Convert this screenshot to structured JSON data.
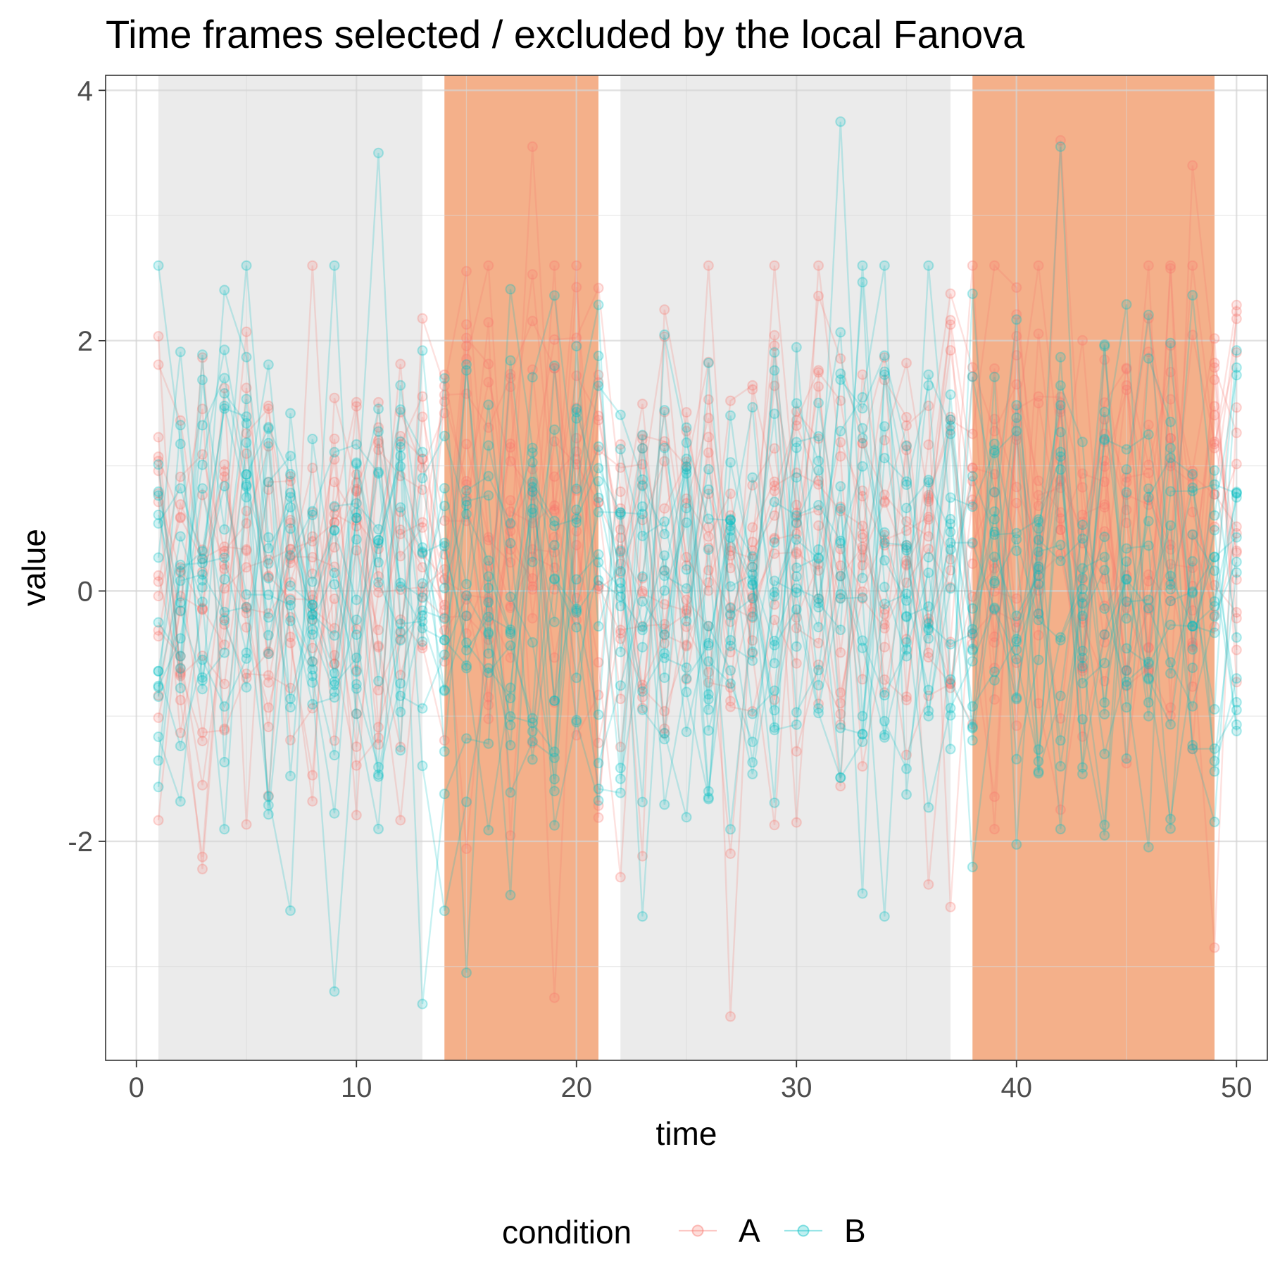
{
  "chart_data": {
    "type": "line",
    "title": "Time frames selected / excluded by the local Fanova",
    "xlabel": "time",
    "ylabel": "value",
    "xlim": [
      -1.4,
      51.4
    ],
    "ylim": [
      -3.75,
      4.12
    ],
    "x_ticks": [
      0,
      10,
      20,
      30,
      40,
      50
    ],
    "x_tick_labels": [
      "0",
      "10",
      "20",
      "30",
      "40",
      "50"
    ],
    "y_ticks": [
      -2,
      0,
      2,
      4
    ],
    "y_tick_labels": [
      "-2",
      "0",
      "2",
      "4"
    ],
    "grid": true,
    "legend": {
      "title": "condition",
      "position": "bottom",
      "entries": [
        {
          "label": "A",
          "color": "#F8766D"
        },
        {
          "label": "B",
          "color": "#00BFC4"
        }
      ]
    },
    "time_points": {
      "start": 1,
      "end": 50
    },
    "curves_per_condition": 16,
    "series_summary": [
      {
        "name": "A",
        "color": "#F8766D",
        "opacity": 0.22,
        "mean": 0.3,
        "sd": 1.0
      },
      {
        "name": "B",
        "color": "#00BFC4",
        "opacity": 0.22,
        "mean": 0.15,
        "sd": 1.0
      }
    ],
    "regions": [
      {
        "label": "excluded",
        "x_start": 1,
        "x_end": 13,
        "color": "#EBEBEB"
      },
      {
        "label": "selected",
        "x_start": 14,
        "x_end": 21,
        "color": "#F4B08A"
      },
      {
        "label": "excluded",
        "x_start": 22,
        "x_end": 37,
        "color": "#EBEBEB"
      },
      {
        "label": "selected",
        "x_start": 38,
        "x_end": 49,
        "color": "#F4B08A"
      }
    ],
    "notable_points": [
      {
        "series": "B",
        "x": 11,
        "y": 3.5
      },
      {
        "series": "B",
        "x": 32,
        "y": 3.75
      },
      {
        "series": "A",
        "x": 18,
        "y": 3.55
      },
      {
        "series": "A",
        "x": 42,
        "y": 3.6
      },
      {
        "series": "B",
        "x": 42,
        "y": 3.55
      },
      {
        "series": "A",
        "x": 48,
        "y": 3.4
      },
      {
        "series": "B",
        "x": 9,
        "y": -3.2
      },
      {
        "series": "B",
        "x": 13,
        "y": -3.3
      },
      {
        "series": "A",
        "x": 27,
        "y": -3.4
      },
      {
        "series": "A",
        "x": 19,
        "y": -3.25
      },
      {
        "series": "A",
        "x": 49,
        "y": -2.85
      },
      {
        "series": "B",
        "x": 15,
        "y": -3.05
      }
    ]
  }
}
